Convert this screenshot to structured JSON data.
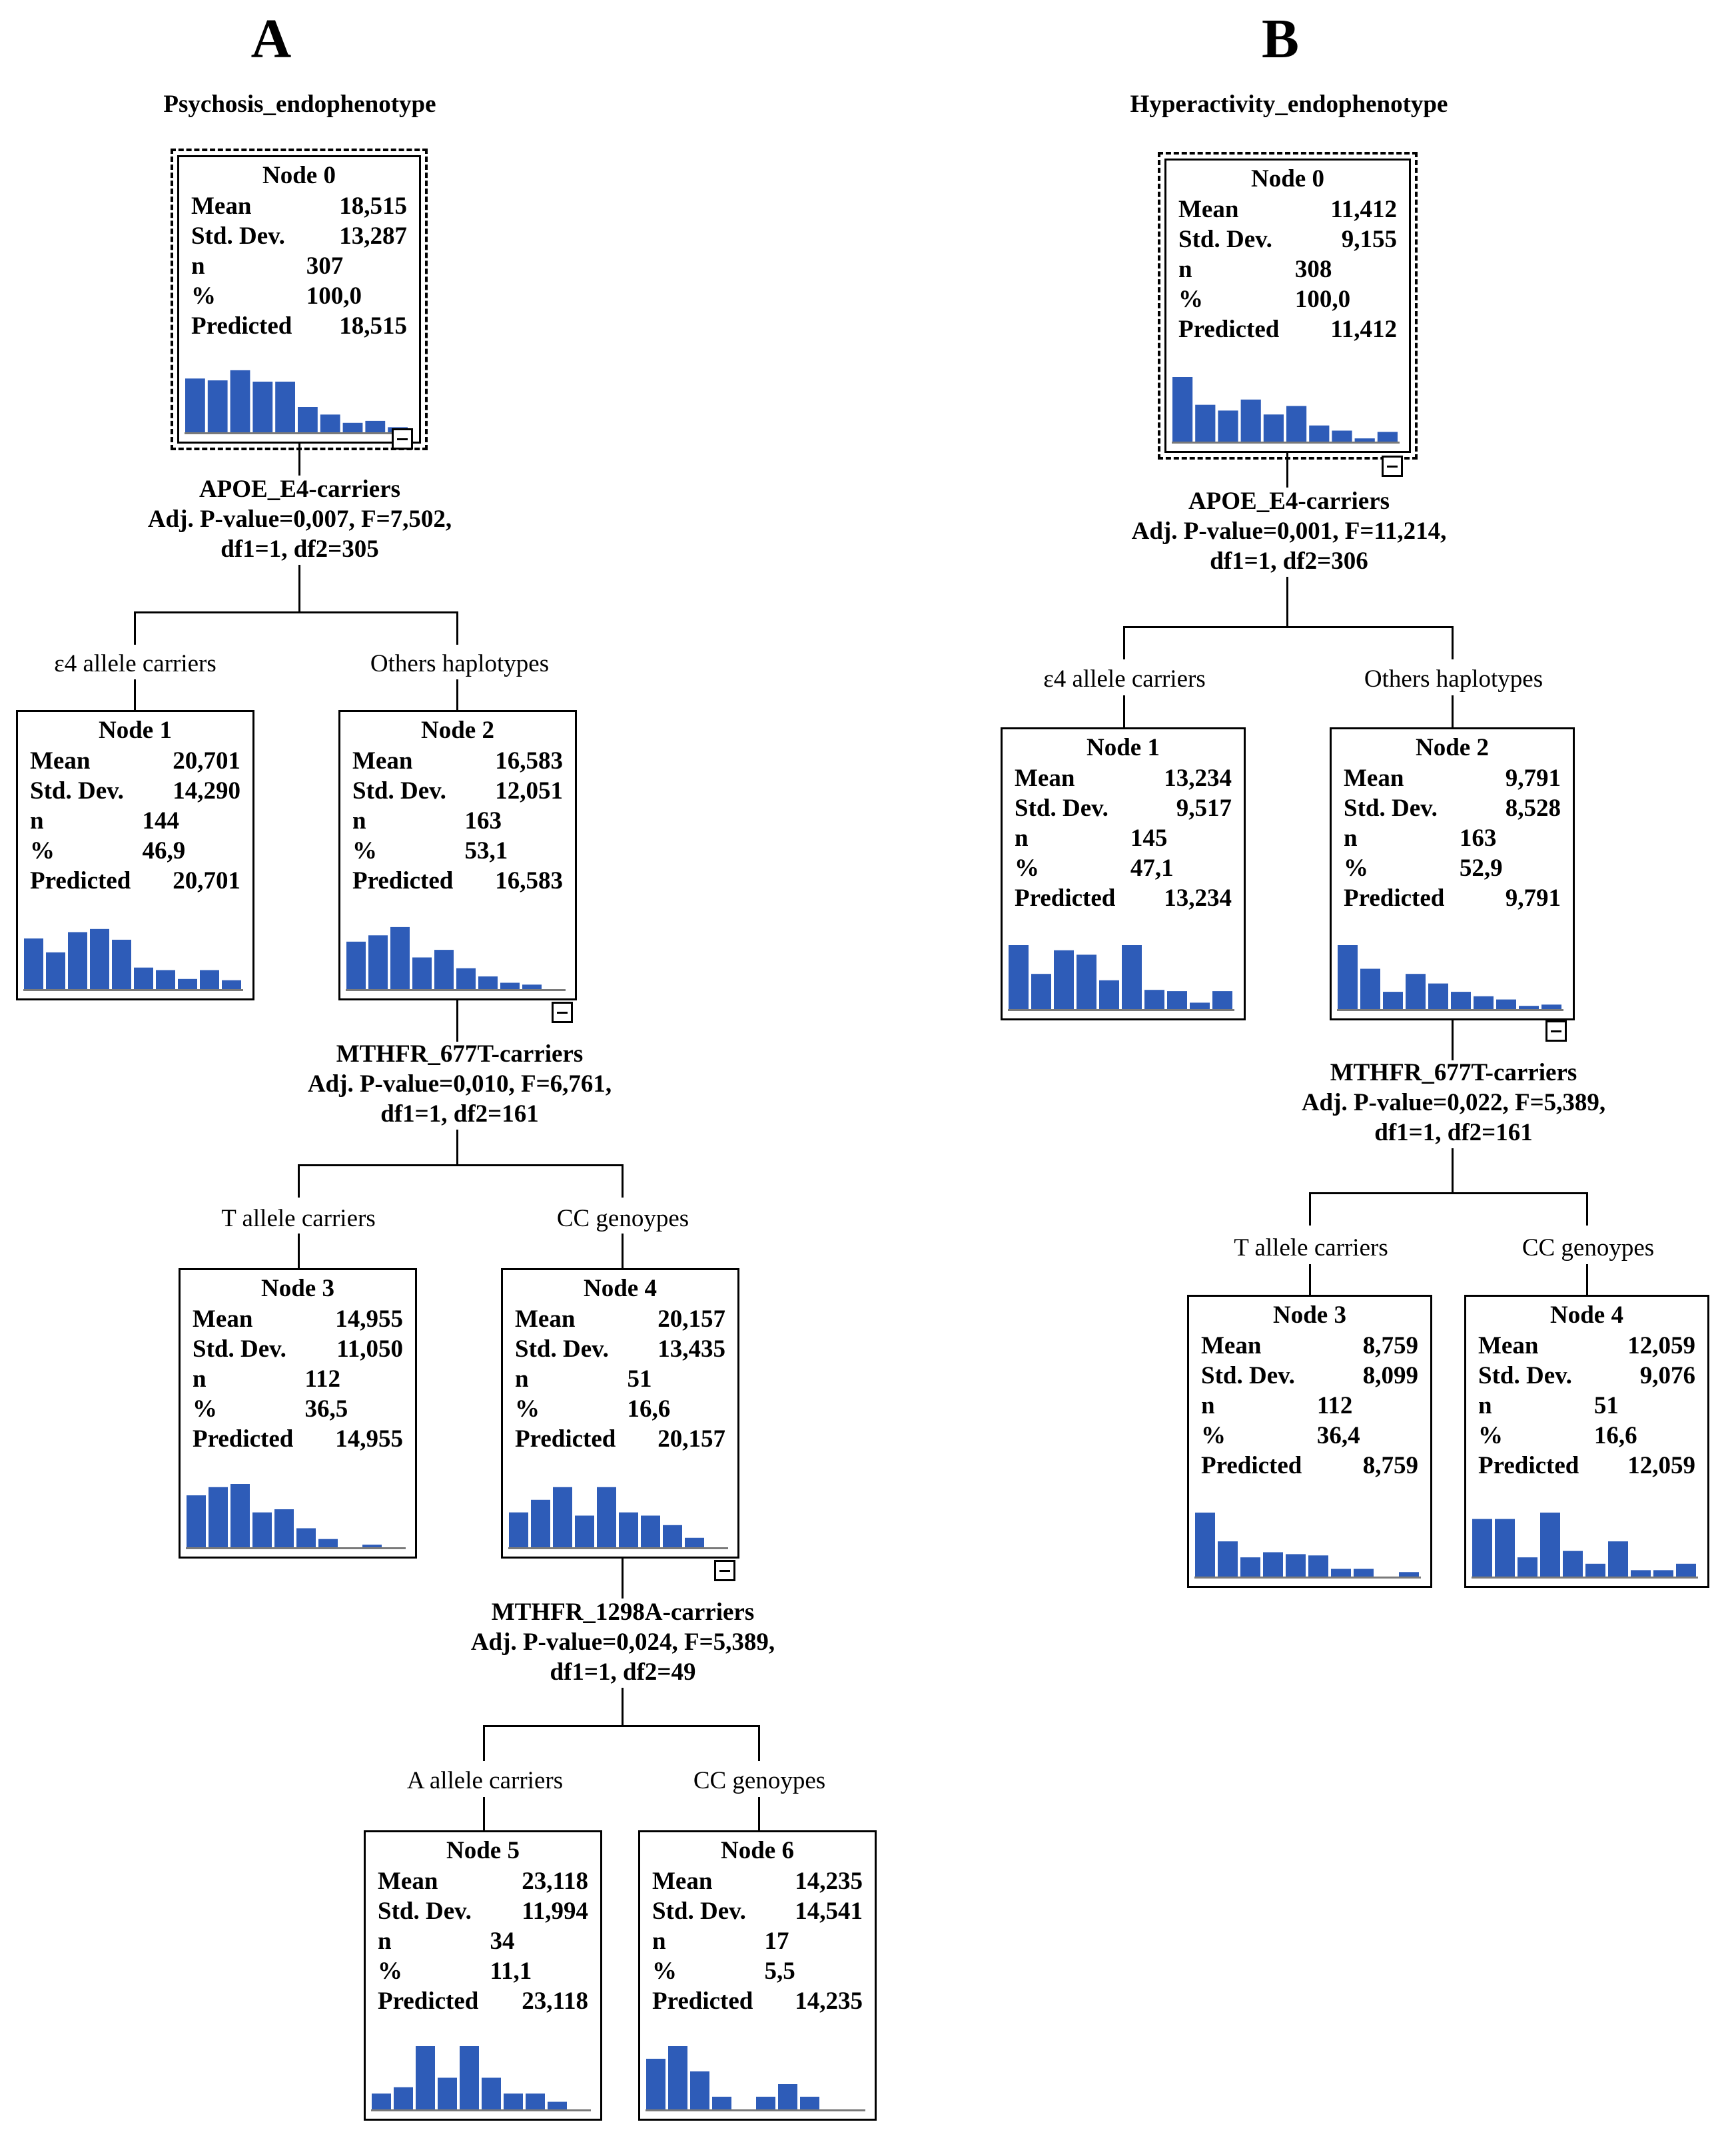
{
  "colors": {
    "bar": "#2e5cb8",
    "axis": "#7a7a7a"
  },
  "trees": [
    {
      "panel": "A",
      "title": "Psychosis_endophenotype",
      "row_labels": [
        "Mean",
        "Std. Dev.",
        "n",
        "%",
        "Predicted"
      ],
      "nodes": [
        {
          "title": "Node 0",
          "mean": "18,515",
          "sd": "13,287",
          "n": "307",
          "pct": "100,0",
          "predicted": "18,515",
          "hist": [
            0.85,
            0.82,
            0.98,
            0.8,
            0.8,
            0.4,
            0.28,
            0.15,
            0.18,
            0.08
          ]
        },
        {
          "title": "Node 1",
          "mean": "20,701",
          "sd": "14,290",
          "n": "144",
          "pct": "46,9",
          "predicted": "20,701",
          "hist": [
            0.8,
            0.58,
            0.9,
            0.95,
            0.78,
            0.34,
            0.3,
            0.16,
            0.3,
            0.14
          ]
        },
        {
          "title": "Node 2",
          "mean": "16,583",
          "sd": "12,051",
          "n": "163",
          "pct": "53,1",
          "predicted": "16,583",
          "hist": [
            0.75,
            0.85,
            0.98,
            0.5,
            0.62,
            0.33,
            0.2,
            0.1,
            0.07,
            0.0
          ]
        },
        {
          "title": "Node 3",
          "mean": "14,955",
          "sd": "11,050",
          "n": "112",
          "pct": "36,5",
          "predicted": "14,955",
          "hist": [
            0.82,
            0.95,
            1.0,
            0.55,
            0.6,
            0.3,
            0.13,
            0.0,
            0.04,
            0.0
          ]
        },
        {
          "title": "Node 4",
          "mean": "20,157",
          "sd": "13,435",
          "n": "51",
          "pct": "16,6",
          "predicted": "20,157",
          "hist": [
            0.55,
            0.75,
            0.95,
            0.5,
            0.95,
            0.55,
            0.5,
            0.35,
            0.15,
            0.0
          ]
        },
        {
          "title": "Node 5",
          "mean": "23,118",
          "sd": "11,994",
          "n": "34",
          "pct": "11,1",
          "predicted": "23,118",
          "hist": [
            0.25,
            0.35,
            1.0,
            0.5,
            1.0,
            0.5,
            0.25,
            0.25,
            0.12,
            0.0
          ]
        },
        {
          "title": "Node 6",
          "mean": "14,235",
          "sd": "14,541",
          "n": "17",
          "pct": "5,5",
          "predicted": "14,235",
          "hist": [
            0.8,
            1.0,
            0.6,
            0.2,
            0.0,
            0.2,
            0.4,
            0.2,
            0.0,
            0.0
          ]
        }
      ],
      "splits": [
        {
          "lines": [
            "APOE_E4-carriers",
            "Adj. P-value=0,007, F=7,502,",
            "df1=1, df2=305"
          ],
          "left": "ε4 allele carriers",
          "right": "Others haplotypes"
        },
        {
          "lines": [
            "MTHFR_677T-carriers",
            "Adj. P-value=0,010, F=6,761,",
            "df1=1, df2=161"
          ],
          "left": "T allele carriers",
          "right": "CC genoypes"
        },
        {
          "lines": [
            "MTHFR_1298A-carriers",
            "Adj. P-value=0,024, F=5,389,",
            "df1=1, df2=49"
          ],
          "left": "A allele carriers",
          "right": "CC genoypes"
        }
      ]
    },
    {
      "panel": "B",
      "title": "Hyperactivity_endophenotype",
      "row_labels": [
        "Mean",
        "Std. Dev.",
        "n",
        "%",
        "Predicted"
      ],
      "nodes": [
        {
          "title": "Node 0",
          "mean": "11,412",
          "sd": "9,155",
          "n": "308",
          "pct": "100,0",
          "predicted": "11,412",
          "hist": [
            1.0,
            0.57,
            0.48,
            0.65,
            0.42,
            0.55,
            0.25,
            0.17,
            0.05,
            0.15
          ]
        },
        {
          "title": "Node 1",
          "mean": "13,234",
          "sd": "9,517",
          "n": "145",
          "pct": "47,1",
          "predicted": "13,234",
          "hist": [
            1.0,
            0.55,
            0.92,
            0.85,
            0.45,
            1.0,
            0.3,
            0.28,
            0.1,
            0.28
          ]
        },
        {
          "title": "Node 2",
          "mean": "9,791",
          "sd": "8,528",
          "n": "163",
          "pct": "52,9",
          "predicted": "9,791",
          "hist": [
            1.0,
            0.63,
            0.27,
            0.55,
            0.4,
            0.27,
            0.2,
            0.15,
            0.05,
            0.07
          ]
        },
        {
          "title": "Node 3",
          "mean": "8,759",
          "sd": "8,099",
          "n": "112",
          "pct": "36,4",
          "predicted": "8,759",
          "hist": [
            1.0,
            0.55,
            0.3,
            0.38,
            0.35,
            0.33,
            0.12,
            0.12,
            0.0,
            0.07
          ]
        },
        {
          "title": "Node 4",
          "mean": "12,059",
          "sd": "9,076",
          "n": "51",
          "pct": "16,6",
          "predicted": "12,059",
          "hist": [
            0.9,
            0.9,
            0.3,
            1.0,
            0.4,
            0.2,
            0.55,
            0.1,
            0.1,
            0.2
          ]
        }
      ],
      "splits": [
        {
          "lines": [
            "APOE_E4-carriers",
            "Adj. P-value=0,001, F=11,214,",
            "df1=1, df2=306"
          ],
          "left": "ε4 allele carriers",
          "right": "Others haplotypes"
        },
        {
          "lines": [
            "MTHFR_677T-carriers",
            "Adj. P-value=0,022, F=5,389,",
            "df1=1, df2=161"
          ],
          "left": "T allele carriers",
          "right": "CC genoypes"
        }
      ]
    }
  ]
}
